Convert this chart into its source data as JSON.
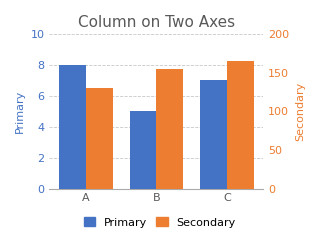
{
  "title": "Column on Two Axes",
  "categories": [
    "A",
    "B",
    "C"
  ],
  "primary_values": [
    8,
    5,
    7
  ],
  "secondary_values": [
    130,
    155,
    165
  ],
  "primary_color": "#4472C4",
  "secondary_color": "#ED7D31",
  "primary_label": "Primary",
  "secondary_label": "Secondary",
  "primary_ylim": [
    0,
    10
  ],
  "primary_yticks": [
    0,
    2,
    4,
    6,
    8,
    10
  ],
  "secondary_ylim": [
    0,
    200
  ],
  "secondary_yticks": [
    0,
    50,
    100,
    150,
    200
  ],
  "title_fontsize": 11,
  "axis_label_fontsize": 8,
  "tick_fontsize": 8,
  "legend_fontsize": 8,
  "bar_width": 0.38,
  "background_color": "#ffffff",
  "grid_color": "#c8c8c8",
  "primary_axis_color": "#4472C4",
  "secondary_axis_color": "#ED7D31",
  "title_color": "#595959"
}
